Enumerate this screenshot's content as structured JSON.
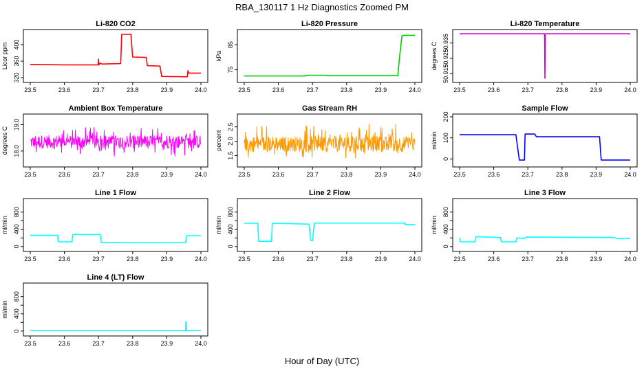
{
  "figure": {
    "title": "RBA_130117  1 Hz Diagnostics Zoomed PM",
    "xlabel": "Hour of Day (UTC)"
  },
  "chart_data": [
    {
      "type": "line",
      "title": "Li-820 CO2",
      "ylabel": "Licor ppm",
      "color": "#ff0000",
      "xlim": [
        23.5,
        24.0
      ],
      "ylim": [
        315,
        430
      ],
      "xticks": [
        "23.5",
        "23.6",
        "23.7",
        "23.8",
        "23.9",
        "24.0"
      ],
      "yticks": [
        320,
        360,
        400
      ],
      "ytick_labels": [
        "320",
        "360",
        "400"
      ],
      "x": [
        23.5,
        23.6,
        23.699,
        23.7,
        23.701,
        23.705,
        23.71,
        23.765,
        23.768,
        23.795,
        23.8,
        23.84,
        23.843,
        23.88,
        23.885,
        23.96,
        23.962,
        23.963,
        23.965,
        24.0
      ],
      "y": [
        352,
        351,
        351,
        365,
        351,
        355,
        353,
        354,
        425,
        425,
        370,
        369,
        349,
        348,
        323,
        322,
        337,
        333,
        331,
        331
      ]
    },
    {
      "type": "line",
      "title": "Li-820 Pressure",
      "ylabel": "kPa",
      "color": "#00cc00",
      "xlim": [
        23.5,
        24.0
      ],
      "ylim": [
        71,
        90
      ],
      "xticks": [
        "23.5",
        "23.6",
        "23.7",
        "23.8",
        "23.9",
        "24.0"
      ],
      "yticks": [
        75,
        85
      ],
      "ytick_labels": [
        "75",
        "85"
      ],
      "x": [
        23.5,
        23.68,
        23.685,
        23.74,
        23.745,
        23.95,
        23.955,
        23.962,
        23.967,
        24.0
      ],
      "y": [
        72.5,
        72.5,
        72.8,
        72.8,
        72.6,
        72.6,
        80,
        88.5,
        88.8,
        88.8
      ]
    },
    {
      "type": "line",
      "title": "Li-820 Temperature",
      "ylabel": "degrees C",
      "color": "#cc00cc",
      "xlim": [
        23.5,
        24.0
      ],
      "ylim": [
        50.911,
        50.942
      ],
      "xticks": [
        "23.5",
        "23.6",
        "23.7",
        "23.8",
        "23.9",
        "24.0"
      ],
      "yticks": [
        50.915,
        50.925,
        50.935
      ],
      "ytick_labels": [
        "50.915",
        "50.925",
        "50.935"
      ],
      "x": [
        23.5,
        23.749,
        23.75,
        23.751,
        24.0
      ],
      "y": [
        50.941,
        50.941,
        50.912,
        50.941,
        50.941
      ]
    },
    {
      "type": "line",
      "title": "Ambient Box Temperature",
      "ylabel": "degrees C",
      "color": "#ff00ff",
      "xlim": [
        23.5,
        24.0
      ],
      "ylim": [
        17.5,
        19.3
      ],
      "xticks": [
        "23.5",
        "23.6",
        "23.7",
        "23.8",
        "23.9",
        "24.0"
      ],
      "yticks": [
        18.0,
        19.0
      ],
      "ytick_labels": [
        "18.0",
        "19.0"
      ],
      "band": [
        17.8,
        18.9
      ],
      "center": 18.35
    },
    {
      "type": "line",
      "title": "Gas Stream RH",
      "ylabel": "percent",
      "color": "#ff9900",
      "xlim": [
        23.5,
        24.0
      ],
      "ylim": [
        1.2,
        2.85
      ],
      "xticks": [
        "23.5",
        "23.6",
        "23.7",
        "23.8",
        "23.9",
        "24.0"
      ],
      "yticks": [
        1.5,
        2.0,
        2.5
      ],
      "ytick_labels": [
        "1.5",
        "2.0",
        "2.5"
      ],
      "band": [
        1.4,
        2.6
      ],
      "center": 1.9
    },
    {
      "type": "line",
      "title": "Sample Flow",
      "ylabel": "ml/min",
      "color": "#0000ff",
      "xlim": [
        23.5,
        24.0
      ],
      "ylim": [
        -25,
        200
      ],
      "xticks": [
        "23.5",
        "23.6",
        "23.7",
        "23.8",
        "23.9",
        "24.0"
      ],
      "yticks": [
        0,
        100,
        200
      ],
      "ytick_labels": [
        "0",
        "100",
        "200"
      ],
      "x": [
        23.5,
        23.665,
        23.675,
        23.69,
        23.692,
        23.72,
        23.725,
        23.91,
        23.915,
        24.0
      ],
      "y": [
        115,
        115,
        -5,
        -5,
        118,
        118,
        105,
        105,
        -5,
        -5
      ]
    },
    {
      "type": "line",
      "title": "Line 1 Flow",
      "ylabel": "ml/min",
      "color": "#00ffff",
      "xlim": [
        23.5,
        24.0
      ],
      "ylim": [
        -50,
        1050
      ],
      "xticks": [
        "23.5",
        "23.6",
        "23.7",
        "23.8",
        "23.9",
        "24.0"
      ],
      "yticks": [
        0,
        200,
        400,
        600,
        800
      ],
      "ytick_labels": [
        "0",
        "",
        "400",
        "",
        "800"
      ],
      "x": [
        23.5,
        23.58,
        23.582,
        23.622,
        23.625,
        23.705,
        23.708,
        23.75,
        23.752,
        23.955,
        23.958,
        24.0
      ],
      "y": [
        260,
        260,
        110,
        110,
        280,
        280,
        95,
        95,
        90,
        90,
        250,
        250
      ]
    },
    {
      "type": "line",
      "title": "Line 2 Flow",
      "ylabel": "ml/min",
      "color": "#00ffff",
      "xlim": [
        23.5,
        24.0
      ],
      "ylim": [
        -50,
        1050
      ],
      "xticks": [
        "23.5",
        "23.6",
        "23.7",
        "23.8",
        "23.9",
        "24.0"
      ],
      "yticks": [
        0,
        200,
        400,
        600,
        800
      ],
      "ytick_labels": [
        "0",
        "",
        "400",
        "",
        "800"
      ],
      "x": [
        23.5,
        23.54,
        23.542,
        23.58,
        23.582,
        23.69,
        23.695,
        23.7,
        23.705,
        23.97,
        23.972,
        24.0
      ],
      "y": [
        540,
        540,
        120,
        120,
        540,
        520,
        140,
        140,
        545,
        545,
        510,
        510
      ]
    },
    {
      "type": "line",
      "title": "Line 3 Flow",
      "ylabel": "ml/min",
      "color": "#00ffff",
      "xlim": [
        23.5,
        24.0
      ],
      "ylim": [
        -50,
        1050
      ],
      "xticks": [
        "23.5",
        "23.6",
        "23.7",
        "23.8",
        "23.9",
        "24.0"
      ],
      "yticks": [
        0,
        200,
        400,
        600,
        800
      ],
      "ytick_labels": [
        "0",
        "",
        "400",
        "",
        "800"
      ],
      "x": [
        23.5,
        23.503,
        23.545,
        23.548,
        23.62,
        23.622,
        23.665,
        23.668,
        23.69,
        23.695,
        23.95,
        23.96,
        24.0
      ],
      "y": [
        200,
        110,
        110,
        230,
        210,
        110,
        110,
        200,
        190,
        220,
        210,
        190,
        190
      ]
    },
    {
      "type": "line",
      "title": "Line 4 (LT) Flow",
      "ylabel": "ml/min",
      "color": "#00ffff",
      "xlim": [
        23.5,
        24.0
      ],
      "ylim": [
        -50,
        1050
      ],
      "xticks": [
        "23.5",
        "23.6",
        "23.7",
        "23.8",
        "23.9",
        "24.0"
      ],
      "yticks": [
        0,
        200,
        400,
        600,
        800
      ],
      "ytick_labels": [
        "0",
        "",
        "400",
        "",
        "800"
      ],
      "x": [
        23.5,
        23.955,
        23.956,
        23.957,
        24.0
      ],
      "y": [
        10,
        10,
        220,
        15,
        15
      ]
    }
  ]
}
